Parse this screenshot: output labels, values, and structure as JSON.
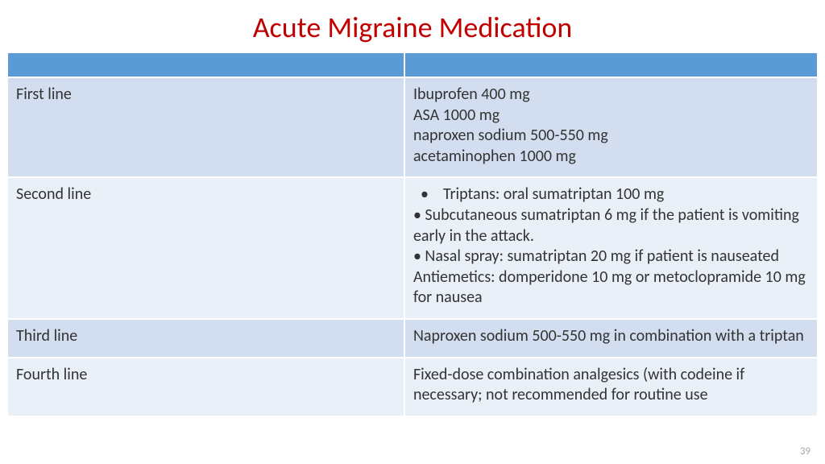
{
  "title": "Acute Migraine Medication",
  "title_color": "#c00000",
  "page_number": "39",
  "page_number_color": "#a6a6a6",
  "table": {
    "header_bg": "#5b9bd5",
    "row_alt_bg_a": "#d2deef",
    "row_alt_bg_b": "#eaf0f8",
    "text_color": "#333333",
    "col_widths_pct": [
      49,
      51
    ],
    "rows": [
      {
        "label": "First line",
        "lines": [
          "Ibuprofen 400 mg",
          "ASA 1000 mg",
          "naproxen sodium 500-550 mg",
          "acetaminophen 1000 mg"
        ]
      },
      {
        "label": "Second line",
        "lines": [
          "  •    Triptans: oral sumatriptan 100 mg",
          "• Subcutaneous sumatriptan 6 mg if the patient is vomiting early in the attack.",
          "• Nasal spray: sumatriptan 20 mg if patient is nauseated",
          "Antiemetics: domperidone 10 mg or metoclopramide 10 mg for nausea"
        ]
      },
      {
        "label": "Third line",
        "lines": [
          "Naproxen sodium 500-550 mg in combination with a triptan"
        ]
      },
      {
        "label": "Fourth line",
        "lines": [
          "Fixed-dose combination analgesics (with codeine if necessary; not recommended for routine use"
        ]
      }
    ]
  }
}
